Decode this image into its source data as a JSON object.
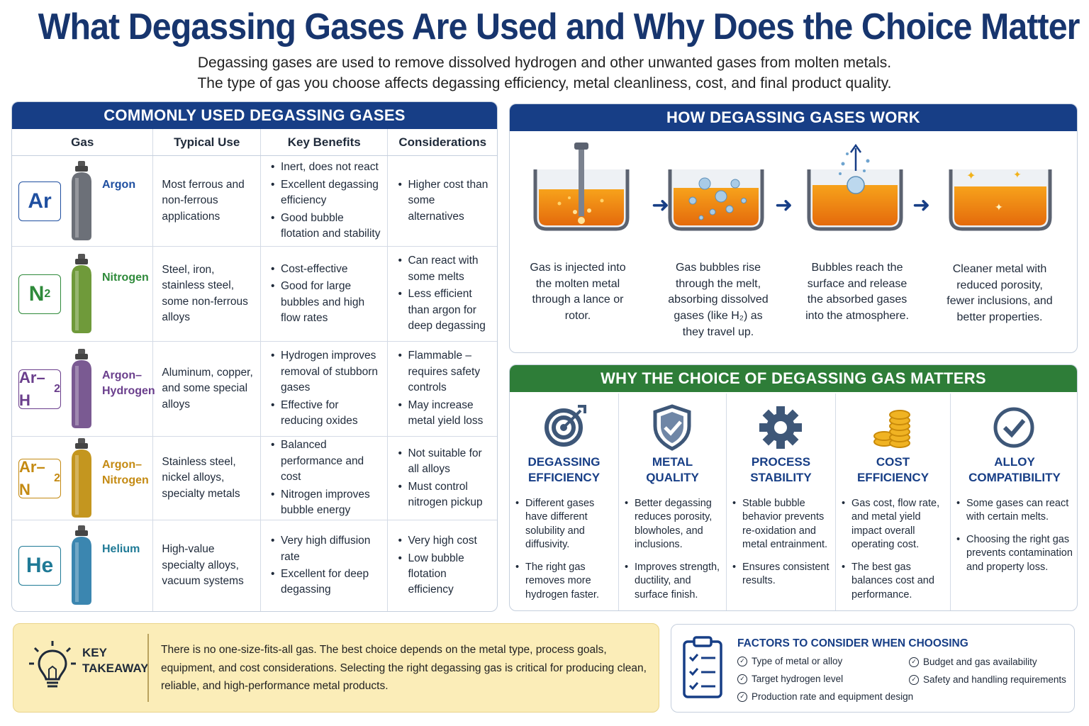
{
  "header": {
    "title": "What Degassing Gases Are Used and Why Does the Choice Matter",
    "subtitle_line1": "Degassing gases are used to remove dissolved hydrogen and other unwanted gases from molten metals.",
    "subtitle_line2": "The type of gas you choose affects degassing efficiency, metal cleanliness, cost, and final product quality."
  },
  "table": {
    "title": "COMMONLY USED DEGASSING GASES",
    "headers": [
      "Gas",
      "Typical Use",
      "Key Benefits",
      "Considerations"
    ],
    "rows": [
      {
        "symbol": "Ar",
        "symbol_sub": "",
        "name": "Argon",
        "color": "#6c7078",
        "accent": "#1f4fa0",
        "use": "Most ferrous and non-ferrous applications",
        "benefits": [
          "Inert, does not react",
          "Excellent degassing efficiency",
          "Good bubble flotation and stability"
        ],
        "considerations": [
          "Higher cost than some alternatives"
        ]
      },
      {
        "symbol": "N",
        "symbol_sub": "2",
        "name": "Nitrogen",
        "color": "#6f9a3a",
        "accent": "#2e8a3a",
        "use": "Steel, iron, stainless steel, some non-ferrous alloys",
        "benefits": [
          "Cost-effective",
          "Good for large bubbles and high flow rates"
        ],
        "considerations": [
          "Can react with some melts",
          "Less efficient than argon for deep degassing"
        ]
      },
      {
        "symbol": "Ar–H",
        "symbol_sub": "2",
        "name": "Argon–\nHydrogen",
        "color": "#7a5a92",
        "accent": "#6a3e8c",
        "use": "Aluminum, copper, and some special alloys",
        "benefits": [
          "Hydrogen improves removal of stubborn gases",
          "Effective for reducing oxides"
        ],
        "considerations": [
          "Flammable – requires safety controls",
          "May increase metal yield loss"
        ]
      },
      {
        "symbol": "Ar–N",
        "symbol_sub": "2",
        "name": "Argon–\nNitrogen",
        "color": "#c4961f",
        "accent": "#c48a12",
        "use": "Stainless steel, nickel alloys, specialty metals",
        "benefits": [
          "Balanced performance and cost",
          "Nitrogen improves bubble energy"
        ],
        "considerations": [
          "Not suitable for all alloys",
          "Must control nitrogen pickup"
        ]
      },
      {
        "symbol": "He",
        "symbol_sub": "",
        "name": "Helium",
        "color": "#3b86b0",
        "accent": "#1f7a96",
        "use": "High-value specialty alloys, vacuum systems",
        "benefits": [
          "Very high diffusion rate",
          "Excellent for deep degassing"
        ],
        "considerations": [
          "Very high cost",
          "Low bubble flotation efficiency"
        ]
      }
    ]
  },
  "how": {
    "title": "HOW DEGASSING GASES WORK",
    "steps": [
      "Gas is injected into the molten metal through a lance or rotor.",
      "Gas bubbles rise through the melt, absorbing dissolved gases (like H₂) as they travel up.",
      "Bubbles reach the surface and release the absorbed gases into the atmosphere.",
      "Cleaner metal with reduced porosity, fewer inclusions, and better properties."
    ]
  },
  "why": {
    "title": "WHY THE CHOICE OF DEGASSING GAS MATTERS",
    "items": [
      {
        "icon": "target-icon",
        "title": "DEGASSING\nEFFICIENCY",
        "points": [
          "Different gases have different solubility and diffusivity.",
          "The right gas removes more hydrogen faster."
        ]
      },
      {
        "icon": "shield-check-icon",
        "title": "METAL\nQUALITY",
        "points": [
          "Better degassing reduces porosity, blowholes, and inclusions.",
          "Improves strength, ductility, and surface finish."
        ]
      },
      {
        "icon": "gear-icon",
        "title": "PROCESS\nSTABILITY",
        "points": [
          "Stable bubble behavior prevents re-oxidation and metal entrainment.",
          "Ensures consistent results."
        ]
      },
      {
        "icon": "coins-icon",
        "title": "COST\nEFFICIENCY",
        "points": [
          "Gas cost, flow rate, and metal yield impact overall operating cost.",
          "The best gas balances cost and performance."
        ]
      },
      {
        "icon": "check-circle-icon",
        "title": "ALLOY\nCOMPATIBILITY",
        "points": [
          "Some gases can react with certain melts.",
          "Choosing the right gas prevents contamination and property loss."
        ]
      }
    ]
  },
  "takeaway": {
    "title": "KEY\nTAKEAWAY",
    "text": "There is no one-size-fits-all gas. The best choice depends on the metal type, process goals, equipment, and cost considerations. Selecting the right degassing gas is critical for producing clean, reliable, and high-performance metal products."
  },
  "factors": {
    "title": "FACTORS TO CONSIDER WHEN CHOOSING",
    "left": [
      "Type of metal or alloy",
      "Target hydrogen level",
      "Production rate and equipment design"
    ],
    "right": [
      "Budget and gas availability",
      "Safety and handling requirements"
    ]
  }
}
